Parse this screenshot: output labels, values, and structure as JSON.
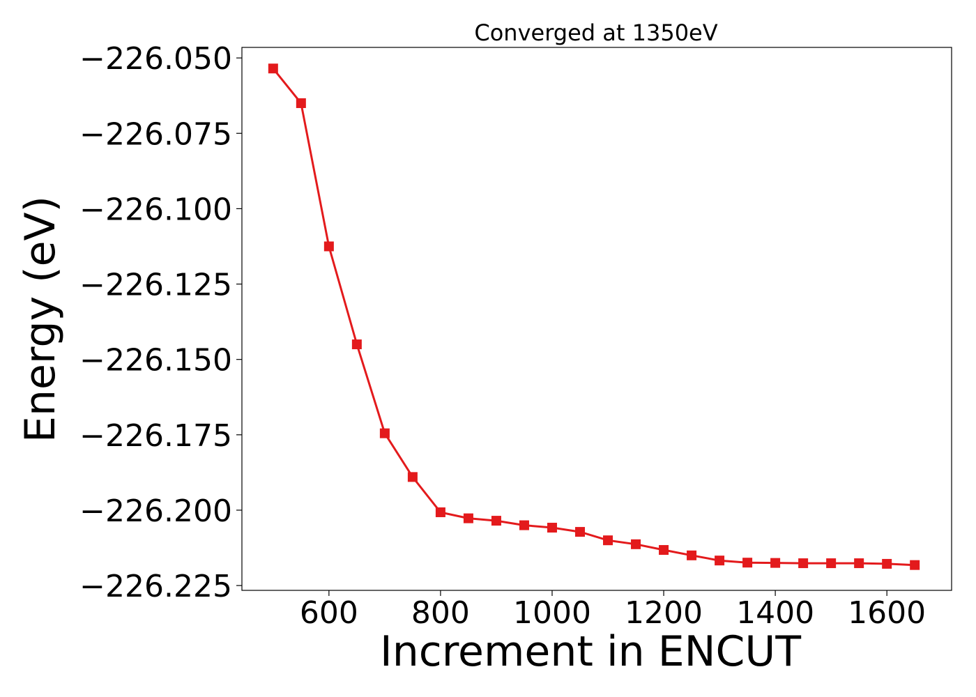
{
  "chart_data": {
    "type": "line",
    "title": "Converged at 1350eV",
    "xlabel": "Increment in ENCUT",
    "ylabel": "Energy (eV)",
    "xlim": [
      444,
      1716
    ],
    "ylim": [
      -226.2266,
      -226.0465
    ],
    "x_ticks": [
      600,
      800,
      1000,
      1200,
      1400,
      1600
    ],
    "x_tick_labels": [
      "600",
      "800",
      "1000",
      "1200",
      "1400",
      "1600"
    ],
    "y_ticks": [
      -226.05,
      -226.075,
      -226.1,
      -226.125,
      -226.15,
      -226.175,
      -226.2,
      -226.225
    ],
    "y_tick_labels": [
      "−226.050",
      "−226.075",
      "−226.100",
      "−226.125",
      "−226.150",
      "−226.175",
      "−226.200",
      "−226.225"
    ],
    "grid": false,
    "series": [
      {
        "name": "Energy",
        "color": "#e31a1c",
        "marker": "square",
        "x": [
          500,
          550,
          600,
          650,
          700,
          750,
          800,
          850,
          900,
          950,
          1000,
          1050,
          1100,
          1150,
          1200,
          1250,
          1300,
          1350,
          1400,
          1450,
          1500,
          1550,
          1600,
          1650
        ],
        "values": [
          -226.0535,
          -226.065,
          -226.1125,
          -226.145,
          -226.1745,
          -226.189,
          -226.2007,
          -226.2027,
          -226.2035,
          -226.205,
          -226.2058,
          -226.2072,
          -226.21,
          -226.2113,
          -226.2132,
          -226.215,
          -226.2167,
          -226.2174,
          -226.2175,
          -226.2176,
          -226.2176,
          -226.2176,
          -226.2178,
          -226.2182
        ]
      }
    ]
  }
}
